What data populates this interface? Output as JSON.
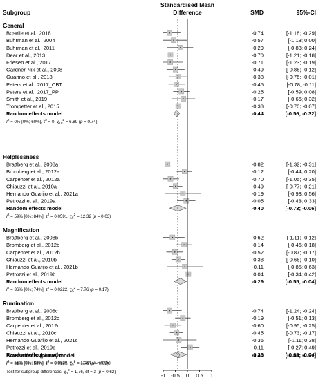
{
  "header": {
    "col_subgroup": "Subgroup",
    "col_effect_line1": "Standardised Mean",
    "col_effect_line2": "Difference",
    "col_smd": "SMD",
    "col_ci": "95%-CI"
  },
  "chart_data": {
    "type": "forest",
    "xticks": [
      -1,
      -0.5,
      0,
      0.5,
      1
    ],
    "tick_labels": [
      "-1",
      "-0.5",
      "0",
      "0.5",
      "1"
    ],
    "xlim": [
      -1.0,
      1.0
    ],
    "reference_line": 0,
    "overall_dashed_line": -0.4,
    "groups": [
      {
        "name": "General",
        "studies": [
          {
            "label": "Boselie et al., 2018",
            "smd": -0.74,
            "lo": -1.18,
            "hi": -0.29,
            "text": "-0.74 [-1.18; -0.29]"
          },
          {
            "label": "Buhrman et al., 2004",
            "smd": -0.57,
            "lo": -1.13,
            "hi": 0.0,
            "text": "-0.57 [-1.13; 0.00]"
          },
          {
            "label": "Buhrman et al., 2011",
            "smd": -0.29,
            "lo": -0.83,
            "hi": 0.24,
            "text": "-0.29 [-0.83; 0.24]"
          },
          {
            "label": "Dear et al., 2013",
            "smd": -0.7,
            "lo": -1.21,
            "hi": -0.18,
            "text": "-0.70 [-1.21; -0.18]"
          },
          {
            "label": "Friesen et al., 2017",
            "smd": -0.71,
            "lo": -1.23,
            "hi": -0.19,
            "text": "-0.71 [-1.23; -0.19]"
          },
          {
            "label": "Gardner-Nix et al., 2008",
            "smd": -0.49,
            "lo": -0.86,
            "hi": -0.12,
            "text": "-0.49 [-0.86; -0.12]"
          },
          {
            "label": "Guarino et al., 2018",
            "smd": -0.38,
            "lo": -0.76,
            "hi": -0.01,
            "text": "-0.38 [-0.76; -0.01]"
          },
          {
            "label": "Peters et al., 2017_CBT",
            "smd": -0.45,
            "lo": -0.78,
            "hi": -0.11,
            "text": "-0.45 [-0.78; -0.11]"
          },
          {
            "label": "Peters et al., 2017_PP",
            "smd": -0.25,
            "lo": -0.59,
            "hi": 0.08,
            "text": "-0.25 [-0.59; 0.08]"
          },
          {
            "label": "Smith et al., 2019",
            "smd": -0.17,
            "lo": -0.66,
            "hi": 0.32,
            "text": "-0.17 [-0.66; 0.32]"
          },
          {
            "label": "Trompetter et al., 2015",
            "smd": -0.38,
            "lo": -0.7,
            "hi": -0.07,
            "text": "-0.38 [-0.70; -0.07]"
          }
        ],
        "pooled": {
          "label": "Random effects model",
          "smd": -0.44,
          "lo": -0.56,
          "hi": -0.32,
          "text": "-0.44 [-0.56; -0.32]"
        },
        "heterogeneity": {
          "i2": "0% [0%; 60%], τ",
          "tau": " = 0, χ",
          "df": "10",
          "chi": " = 6.89 (",
          "p": " = 0.74)"
        }
      },
      {
        "name": "Helplessness",
        "studies": [
          {
            "label": "Brattberg et al., 2008a",
            "smd": -0.82,
            "lo": -1.32,
            "hi": -0.31,
            "text": "-0.82 [-1.32; -0.31]"
          },
          {
            "label": "Bromberg et al., 2012a",
            "smd": -0.12,
            "lo": -0.44,
            "hi": 0.2,
            "text": "-0.12 [-0.44; 0.20]"
          },
          {
            "label": "Carpenter et al., 2012a",
            "smd": -0.7,
            "lo": -1.05,
            "hi": -0.35,
            "text": "-0.70 [-1.05; -0.35]"
          },
          {
            "label": "Chiauzzi et al., 2010a",
            "smd": -0.49,
            "lo": -0.77,
            "hi": -0.21,
            "text": "-0.49 [-0.77; -0.21]"
          },
          {
            "label": "Hernando Guarijo et al., 2021a",
            "smd": -0.19,
            "lo": -0.93,
            "hi": 0.56,
            "text": "-0.19 [-0.93; 0.56]"
          },
          {
            "label": "Petrozzi et al., 2019a",
            "smd": -0.05,
            "lo": -0.43,
            "hi": 0.33,
            "text": "-0.05 [-0.43; 0.33]"
          }
        ],
        "pooled": {
          "label": "Random effects model",
          "smd": -0.4,
          "lo": -0.73,
          "hi": -0.06,
          "text": "-0.40 [-0.73; -0.06]"
        },
        "heterogeneity": {
          "i2": "59% [0%; 84%], τ",
          "tau": " = 0.0591, χ",
          "df": "5",
          "chi": " = 12.32 (",
          "p": " = 0.03)"
        }
      },
      {
        "name": "Magnification",
        "studies": [
          {
            "label": "Brattberg et al., 2008b",
            "smd": -0.62,
            "lo": -1.11,
            "hi": -0.12,
            "text": "-0.62 [-1.11; -0.12]"
          },
          {
            "label": "Bromberg et al., 2012b",
            "smd": -0.14,
            "lo": -0.46,
            "hi": 0.18,
            "text": "-0.14 [-0.46; 0.18]"
          },
          {
            "label": "Carpenter et al., 2012b",
            "smd": -0.52,
            "lo": -0.87,
            "hi": -0.17,
            "text": "-0.52 [-0.87; -0.17]"
          },
          {
            "label": "Chiauzzi et al., 2010b",
            "smd": -0.38,
            "lo": -0.66,
            "hi": -0.1,
            "text": "-0.38 [-0.66; -0.10]"
          },
          {
            "label": "Hernando Guarijo et al., 2021b",
            "smd": -0.11,
            "lo": -0.85,
            "hi": 0.63,
            "text": "-0.11 [-0.85; 0.63]"
          },
          {
            "label": "Petrozzi et al., 2019b",
            "smd": 0.04,
            "lo": -0.34,
            "hi": 0.42,
            "text": "0.04 [-0.34; 0.42]"
          }
        ],
        "pooled": {
          "label": "Random effects model",
          "smd": -0.29,
          "lo": -0.55,
          "hi": -0.04,
          "text": "-0.29 [-0.55; -0.04]"
        },
        "heterogeneity": {
          "i2": "36% [0%; 74%], τ",
          "tau": " = 0.0222, χ",
          "df": "5",
          "chi": " = 7.76 (",
          "p": " = 0.17)"
        }
      },
      {
        "name": "Rumination",
        "studies": [
          {
            "label": "Brattberg et al., 2008c",
            "smd": -0.74,
            "lo": -1.24,
            "hi": -0.24,
            "text": "-0.74 [-1.24; -0.24]"
          },
          {
            "label": "Bromberg et al., 2012c",
            "smd": -0.19,
            "lo": -0.51,
            "hi": 0.13,
            "text": "-0.19 [-0.51; 0.13]"
          },
          {
            "label": "Carpenter et al., 2012c",
            "smd": -0.6,
            "lo": -0.95,
            "hi": -0.25,
            "text": "-0.60 [-0.95; -0.25]"
          },
          {
            "label": "Chiauzzi et al., 2010c",
            "smd": -0.45,
            "lo": -0.73,
            "hi": -0.17,
            "text": "-0.45 [-0.73; -0.17]"
          },
          {
            "label": "Hernando Guarijo et al., 2021c",
            "smd": -0.36,
            "lo": -1.11,
            "hi": 0.38,
            "text": "-0.36 [-1.11; 0.38]"
          },
          {
            "label": "Petrozzi et al., 2019c",
            "smd": 0.11,
            "lo": -0.27,
            "hi": 0.49,
            "text": "0.11 [-0.27; 0.49]"
          }
        ],
        "pooled": {
          "label": "Random effects model",
          "smd": -0.36,
          "lo": -0.68,
          "hi": -0.04,
          "text": "-0.36 [-0.68; -0.04]"
        },
        "heterogeneity": {
          "i2": "56% [0%; 82%], τ",
          "tau": " = 0.0529, χ",
          "df": "5",
          "chi": " = 11.34 (",
          "p": " = 0.05)"
        }
      }
    ],
    "overall": {
      "label": "Fixed effects (plural) model",
      "smd": -0.4,
      "lo": -0.48,
      "hi": -0.32,
      "text": "-0.40 [-0.48; -0.32]",
      "heterogeneity": {
        "i2": "31% [0%; 58%], τ",
        "tau": " = 0.0181, χ",
        "df": "3",
        "chi": " = 1.76 (",
        "p": " = 0.62)"
      }
    },
    "subgroup_test": {
      "prefix": "Test for subgroup differences: χ",
      "df": "3",
      "rest": " = 1.76, df = 3 (",
      "p": " = 0.62)"
    }
  }
}
